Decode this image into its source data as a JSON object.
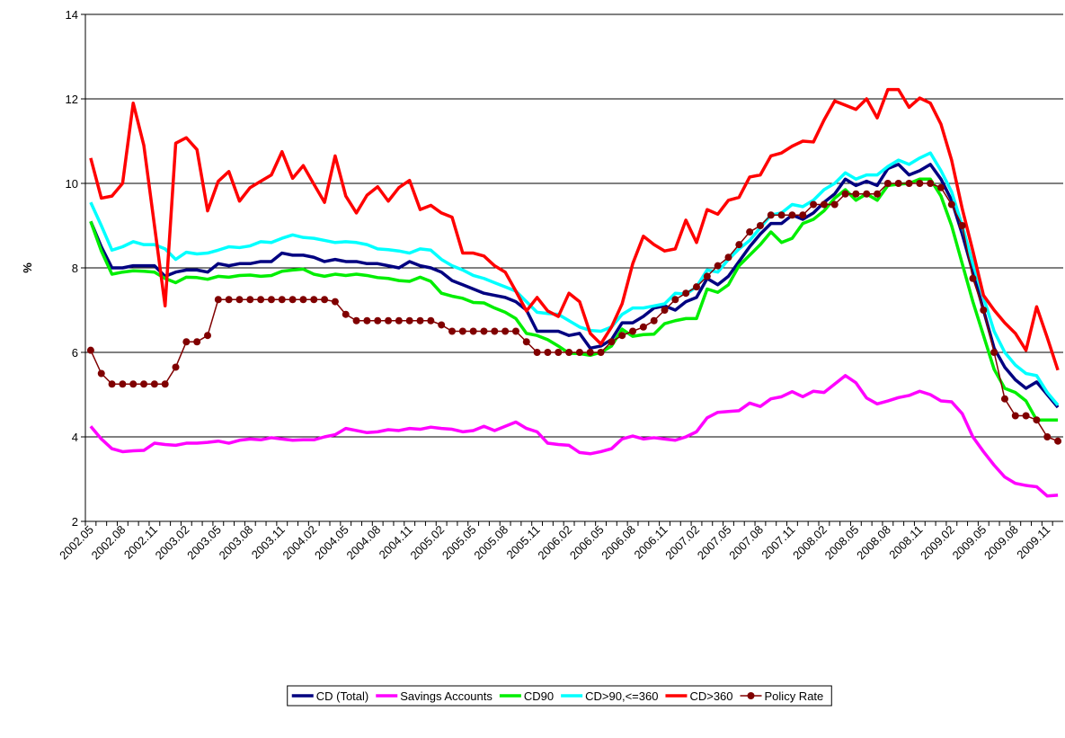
{
  "chart_data": {
    "type": "line",
    "y_label": "%",
    "categories": [
      "2002.05",
      null,
      null,
      "2002.08",
      null,
      null,
      "2002.11",
      null,
      null,
      "2003.02",
      null,
      null,
      "2003.05",
      null,
      null,
      "2003.08",
      null,
      null,
      "2003.11",
      null,
      null,
      "2004.02",
      null,
      null,
      "2004.05",
      null,
      null,
      "2004.08",
      null,
      null,
      "2004.11",
      null,
      null,
      "2005.02",
      null,
      null,
      "2005.05",
      null,
      null,
      "2005.08",
      null,
      null,
      "2005.11",
      null,
      null,
      "2006.02",
      null,
      null,
      "2006.05",
      null,
      null,
      "2006.08",
      null,
      null,
      "2006.11",
      null,
      null,
      "2007.02",
      null,
      null,
      "2007.05",
      null,
      null,
      "2007.08",
      null,
      null,
      "2007.11",
      null,
      null,
      "2008.02",
      null,
      null,
      "2008.05",
      null,
      null,
      "2008.08",
      null,
      null,
      "2008.11",
      null,
      null,
      "2009.02",
      null,
      null,
      "2009.05",
      null,
      null,
      "2009.08",
      null,
      null,
      "2009.11",
      null
    ],
    "ylim": [
      2,
      14
    ],
    "yticks": [
      2,
      4,
      6,
      8,
      10,
      12,
      14
    ],
    "grid": true,
    "legend": "bottom",
    "series": [
      {
        "name": "CD (Total)",
        "color": "#000080",
        "values": [
          9.1,
          8.5,
          8.0,
          8.0,
          8.05,
          8.05,
          8.05,
          7.8,
          7.9,
          7.95,
          7.95,
          7.9,
          8.1,
          8.05,
          8.1,
          8.1,
          8.15,
          8.15,
          8.35,
          8.3,
          8.3,
          8.25,
          8.15,
          8.2,
          8.15,
          8.15,
          8.1,
          8.1,
          8.05,
          8.0,
          8.15,
          8.05,
          8.0,
          7.9,
          7.7,
          7.6,
          7.5,
          7.4,
          7.35,
          7.3,
          7.2,
          7.0,
          6.5,
          6.5,
          6.5,
          6.4,
          6.45,
          6.1,
          6.15,
          6.3,
          6.7,
          6.7,
          6.85,
          7.05,
          7.1,
          7.0,
          7.2,
          7.3,
          7.75,
          7.6,
          7.8,
          8.15,
          8.5,
          8.8,
          9.05,
          9.05,
          9.25,
          9.15,
          9.3,
          9.55,
          9.75,
          10.1,
          9.95,
          10.05,
          9.95,
          10.35,
          10.45,
          10.2,
          10.3,
          10.45,
          10.1,
          9.6,
          8.8,
          7.9,
          7.0,
          6.1,
          5.65,
          5.35,
          5.15,
          5.3,
          5.0,
          4.7
        ]
      },
      {
        "name": "Savings Accounts",
        "color": "#ff00ff",
        "values": [
          4.25,
          3.95,
          3.72,
          3.65,
          3.67,
          3.68,
          3.85,
          3.82,
          3.8,
          3.85,
          3.85,
          3.87,
          3.9,
          3.85,
          3.92,
          3.95,
          3.93,
          3.98,
          3.95,
          3.92,
          3.93,
          3.93,
          4.0,
          4.05,
          4.2,
          4.15,
          4.1,
          4.12,
          4.17,
          4.15,
          4.2,
          4.18,
          4.23,
          4.2,
          4.18,
          4.12,
          4.15,
          4.25,
          4.15,
          4.25,
          4.35,
          4.2,
          4.12,
          3.85,
          3.82,
          3.8,
          3.63,
          3.6,
          3.65,
          3.72,
          3.95,
          4.02,
          3.95,
          3.98,
          3.95,
          3.92,
          4.0,
          4.12,
          4.45,
          4.58,
          4.6,
          4.62,
          4.8,
          4.72,
          4.9,
          4.95,
          5.07,
          4.95,
          5.08,
          5.05,
          5.25,
          5.45,
          5.28,
          4.92,
          4.78,
          4.85,
          4.93,
          4.98,
          5.08,
          5.0,
          4.85,
          4.83,
          4.55,
          4.0,
          3.65,
          3.33,
          3.05,
          2.9,
          2.85,
          2.82,
          2.6,
          2.62
        ]
      },
      {
        "name": "CD90",
        "color": "#00ee00",
        "values": [
          9.1,
          8.4,
          7.85,
          7.9,
          7.93,
          7.92,
          7.9,
          7.75,
          7.65,
          7.78,
          7.77,
          7.73,
          7.8,
          7.78,
          7.82,
          7.83,
          7.8,
          7.82,
          7.92,
          7.95,
          7.97,
          7.85,
          7.8,
          7.85,
          7.82,
          7.85,
          7.82,
          7.77,
          7.75,
          7.7,
          7.68,
          7.78,
          7.68,
          7.4,
          7.33,
          7.28,
          7.18,
          7.17,
          7.05,
          6.95,
          6.8,
          6.45,
          6.4,
          6.3,
          6.15,
          5.98,
          5.97,
          5.93,
          6.0,
          6.15,
          6.55,
          6.38,
          6.42,
          6.43,
          6.68,
          6.75,
          6.8,
          6.8,
          7.5,
          7.42,
          7.6,
          8.05,
          8.3,
          8.55,
          8.85,
          8.6,
          8.7,
          9.05,
          9.15,
          9.35,
          9.65,
          9.85,
          9.6,
          9.75,
          9.6,
          9.95,
          9.98,
          10.0,
          10.1,
          10.1,
          9.7,
          9.0,
          8.1,
          7.2,
          6.4,
          5.6,
          5.15,
          5.05,
          4.85,
          4.4,
          4.4,
          4.4
        ]
      },
      {
        "name": "CD>90,<=360",
        "color": "#00ffff",
        "values": [
          9.55,
          9.0,
          8.42,
          8.5,
          8.62,
          8.55,
          8.55,
          8.45,
          8.2,
          8.37,
          8.33,
          8.35,
          8.42,
          8.5,
          8.48,
          8.52,
          8.62,
          8.6,
          8.7,
          8.78,
          8.72,
          8.7,
          8.65,
          8.6,
          8.62,
          8.6,
          8.55,
          8.45,
          8.43,
          8.4,
          8.35,
          8.45,
          8.42,
          8.2,
          8.05,
          7.95,
          7.82,
          7.75,
          7.65,
          7.55,
          7.45,
          7.2,
          6.95,
          6.92,
          6.9,
          6.75,
          6.6,
          6.52,
          6.5,
          6.6,
          6.9,
          7.05,
          7.05,
          7.1,
          7.15,
          7.4,
          7.38,
          7.55,
          7.95,
          7.9,
          8.2,
          8.45,
          8.65,
          8.95,
          9.25,
          9.3,
          9.5,
          9.45,
          9.6,
          9.85,
          10.0,
          10.25,
          10.1,
          10.2,
          10.2,
          10.4,
          10.55,
          10.45,
          10.6,
          10.72,
          10.3,
          9.8,
          9.0,
          8.1,
          7.3,
          6.5,
          6.0,
          5.7,
          5.5,
          5.45,
          5.05,
          4.75
        ]
      },
      {
        "name": "CD>360",
        "color": "#ff0000",
        "values": [
          10.6,
          9.65,
          9.7,
          10.0,
          11.9,
          10.9,
          9.0,
          7.1,
          10.95,
          11.08,
          10.8,
          9.35,
          10.05,
          10.28,
          9.58,
          9.9,
          10.05,
          10.2,
          10.75,
          10.12,
          10.42,
          9.98,
          9.55,
          10.65,
          9.7,
          9.3,
          9.72,
          9.92,
          9.58,
          9.9,
          10.07,
          9.38,
          9.48,
          9.3,
          9.2,
          8.35,
          8.35,
          8.28,
          8.05,
          7.9,
          7.45,
          6.98,
          7.3,
          6.98,
          6.85,
          7.4,
          7.2,
          6.45,
          6.2,
          6.6,
          7.15,
          8.1,
          8.75,
          8.55,
          8.4,
          8.45,
          9.13,
          8.6,
          9.38,
          9.27,
          9.6,
          9.67,
          10.15,
          10.2,
          10.65,
          10.72,
          10.88,
          11.0,
          10.98,
          11.5,
          11.95,
          11.85,
          11.75,
          12.0,
          11.55,
          12.22,
          12.22,
          11.8,
          12.02,
          11.9,
          11.4,
          10.55,
          9.4,
          8.4,
          7.35,
          7.0,
          6.7,
          6.45,
          6.05,
          7.08,
          6.35,
          5.58
        ]
      },
      {
        "name": "Policy Rate",
        "color": "#800000",
        "marker": "circle",
        "values": [
          6.05,
          5.5,
          5.25,
          5.25,
          5.25,
          5.25,
          5.25,
          5.25,
          5.65,
          6.25,
          6.25,
          6.4,
          7.25,
          7.25,
          7.25,
          7.25,
          7.25,
          7.25,
          7.25,
          7.25,
          7.25,
          7.25,
          7.25,
          7.2,
          6.9,
          6.75,
          6.75,
          6.75,
          6.75,
          6.75,
          6.75,
          6.75,
          6.75,
          6.65,
          6.5,
          6.5,
          6.5,
          6.5,
          6.5,
          6.5,
          6.5,
          6.25,
          6.0,
          6.0,
          6.0,
          6.0,
          6.0,
          6.0,
          6.0,
          6.25,
          6.4,
          6.5,
          6.6,
          6.75,
          7.0,
          7.25,
          7.4,
          7.55,
          7.8,
          8.05,
          8.25,
          8.55,
          8.85,
          9.0,
          9.25,
          9.25,
          9.25,
          9.25,
          9.5,
          9.5,
          9.5,
          9.75,
          9.75,
          9.75,
          9.75,
          10.0,
          10.0,
          10.0,
          10.0,
          10.0,
          9.9,
          9.5,
          9.0,
          7.75,
          7.0,
          6.0,
          4.9,
          4.5,
          4.5,
          4.4,
          4.0,
          3.9
        ]
      }
    ]
  }
}
